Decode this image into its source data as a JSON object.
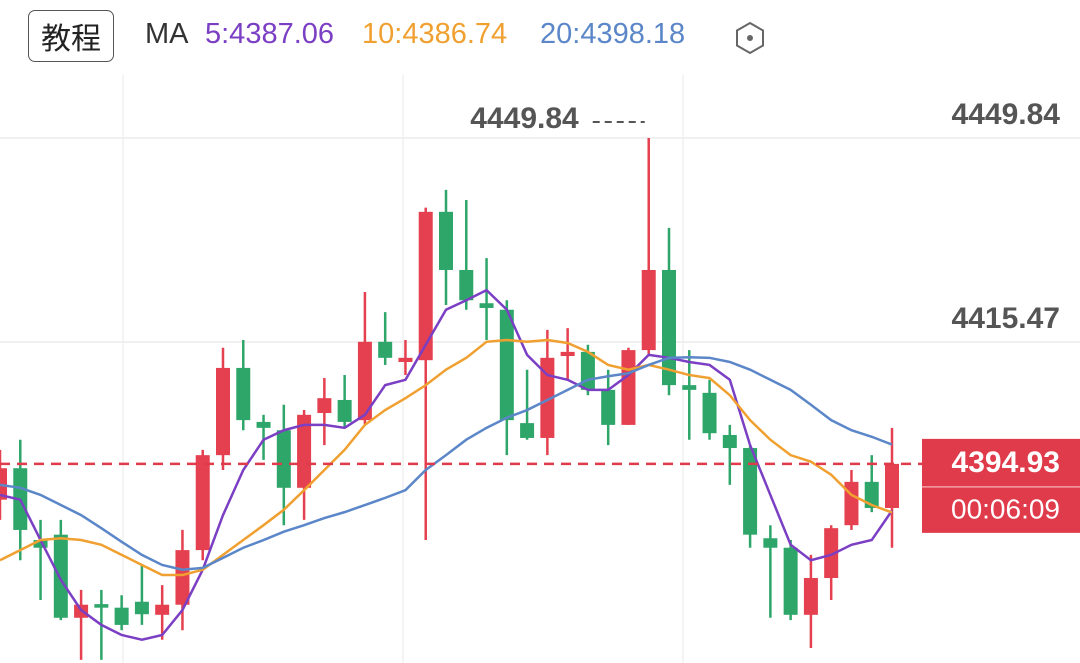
{
  "header": {
    "button": "教程",
    "indicator": "MA"
  },
  "chart_data": {
    "type": "candlestick",
    "ylim": [
      4361.38,
      4473.09
    ],
    "yticks": [
      4449.84,
      4415.47
    ],
    "grid": true,
    "up_color": "#e5404f",
    "down_color": "#2ea66a",
    "candles": {
      "open": [
        4388.9,
        4394.2,
        4382.1,
        4383.0,
        4369.0,
        4371.3,
        4370.7,
        4371.7,
        4369.5,
        4371.2,
        4380.4,
        4396.4,
        4411.1,
        4402.0,
        4400.6,
        4390.9,
        4403.5,
        4405.7,
        4402.3,
        4415.5,
        4412.1,
        4412.4,
        4437.4,
        4427.6,
        4422.0,
        4420.9,
        4401.8,
        4399.3,
        4413.1,
        4413.8,
        4407.4,
        4401.5,
        4414.1,
        4427.6,
        4408.2,
        4406.9,
        4399.8,
        4397.6,
        4382.4,
        4380.8,
        4369.5,
        4375.7,
        4384.6,
        4391.9,
        4387.5
      ],
      "high": [
        4397.3,
        4399.0,
        4385.5,
        4385.5,
        4373.7,
        4373.7,
        4372.8,
        4377.9,
        4374.5,
        4383.8,
        4397.3,
        4414.5,
        4415.8,
        4403.2,
        4404.9,
        4404.0,
        4409.4,
        4409.9,
        4423.9,
        4420.5,
        4415.8,
        4438.1,
        4441.1,
        4439.4,
        4429.6,
        4422.5,
        4410.8,
        4417.5,
        4417.8,
        4415.0,
        4410.8,
        4414.5,
        4449.84,
        4434.7,
        4414.1,
        4409.1,
        4401.5,
        4398.1,
        4384.6,
        4382.1,
        4379.6,
        4384.6,
        4393.9,
        4396.4,
        4401.0
      ],
      "low": [
        4385.5,
        4378.7,
        4372.0,
        4368.6,
        4361.9,
        4361.9,
        4366.9,
        4367.8,
        4365.3,
        4366.9,
        4378.7,
        4393.9,
        4400.6,
        4395.6,
        4384.6,
        4385.5,
        4398.1,
        4401.0,
        4401.5,
        4411.6,
        4409.9,
        4382.1,
        4421.7,
        4420.9,
        4415.8,
        4396.4,
        4399.0,
        4396.4,
        4409.1,
        4406.5,
        4398.1,
        4401.5,
        4413.3,
        4406.5,
        4399.0,
        4399.0,
        4391.4,
        4380.8,
        4369.0,
        4368.6,
        4363.9,
        4372.0,
        4383.8,
        4386.8,
        4380.8
      ],
      "close": [
        4394.2,
        4383.8,
        4380.8,
        4369.0,
        4371.2,
        4370.7,
        4367.8,
        4369.6,
        4371.2,
        4380.4,
        4396.4,
        4411.1,
        4402.3,
        4401.0,
        4390.9,
        4403.2,
        4406.0,
        4402.0,
        4415.5,
        4412.8,
        4412.8,
        4437.4,
        4427.6,
        4422.5,
        4421.2,
        4402.3,
        4399.3,
        4412.8,
        4413.8,
        4407.4,
        4401.5,
        4414.1,
        4427.6,
        4408.2,
        4407.4,
        4400.1,
        4397.6,
        4383.0,
        4380.8,
        4369.5,
        4375.7,
        4384.1,
        4391.9,
        4387.5,
        4394.93
      ]
    },
    "series": [
      {
        "name": "5:4387.06",
        "color": "#7b3fc4",
        "values": [
          4389.7,
          4388.9,
          4382.1,
          4375.4,
          4370.3,
          4367.8,
          4366.1,
          4365.3,
          4366.1,
          4370.3,
          4377.1,
          4386.3,
          4393.9,
          4399.0,
          4400.6,
          4401.5,
          4401.5,
          4401.0,
          4403.2,
          4408.2,
          4409.1,
          4415.0,
          4420.9,
          4422.5,
          4424.2,
          4420.9,
          4413.3,
          4409.9,
          4409.1,
          4407.4,
          4407.4,
          4409.9,
          4413.3,
          4412.8,
          4412.1,
          4411.6,
          4409.1,
          4398.1,
          4389.7,
          4381.3,
          4378.7,
          4379.6,
          4381.3,
          4382.1,
          4387.06
        ]
      },
      {
        "name": "10:4386.74",
        "color": "#f0a030",
        "values": [
          4378.7,
          4380.4,
          4382.1,
          4382.4,
          4382.1,
          4381.3,
          4379.6,
          4377.9,
          4376.2,
          4376.2,
          4377.1,
          4379.6,
          4382.1,
          4384.6,
          4387.2,
          4390.5,
          4393.9,
          4397.3,
          4401.5,
          4404.0,
          4406.0,
          4408.2,
          4410.8,
          4412.8,
          4415.5,
          4415.8,
          4415.5,
          4415.8,
          4415.3,
          4413.8,
          4411.6,
          4410.8,
          4411.6,
          4410.8,
          4409.9,
          4409.4,
          4406.5,
          4402.3,
          4399.0,
          4396.4,
          4395.3,
          4393.1,
          4389.7,
          4388.0,
          4386.74
        ]
      },
      {
        "name": "20:4398.18",
        "color": "#5b86c8",
        "values": [
          4391.4,
          4390.9,
          4389.7,
          4388.0,
          4386.3,
          4384.1,
          4381.8,
          4379.6,
          4377.9,
          4377.1,
          4377.4,
          4379.1,
          4380.8,
          4382.1,
          4383.5,
          4384.6,
          4385.8,
          4386.8,
          4388.0,
          4389.2,
          4390.5,
          4393.9,
          4396.4,
          4399.0,
          4401.0,
          4402.7,
          4404.0,
          4405.7,
          4407.4,
          4409.1,
          4409.7,
          4410.2,
          4411.6,
          4412.8,
          4412.9,
          4412.8,
          4412.1,
          4410.8,
          4409.1,
          4407.4,
          4404.9,
          4402.3,
          4400.6,
          4399.5,
          4398.18
        ]
      }
    ],
    "price_line_color": "#e03b4b",
    "countdown": "00:06:09"
  }
}
